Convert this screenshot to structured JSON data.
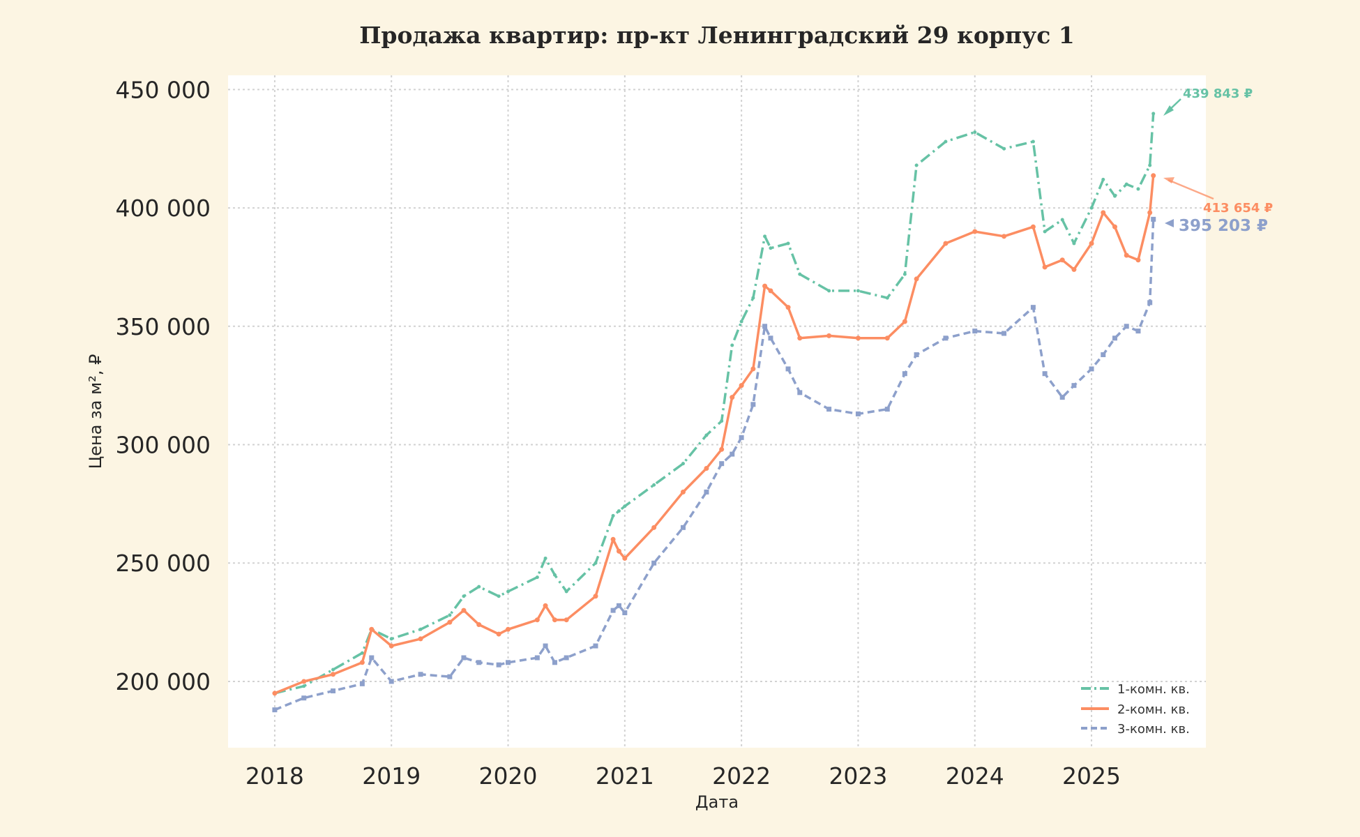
{
  "chart_data": {
    "type": "line",
    "title": "Продажа квартир: пр-кт Ленинградский 29 корпус 1",
    "xlabel": "Дата",
    "ylabel": "Цена за м², ₽",
    "xlim": [
      2017.6,
      2025.98
    ],
    "ylim": [
      172000,
      456000
    ],
    "x_ticks": [
      "2018",
      "2019",
      "2020",
      "2021",
      "2022",
      "2023",
      "2024",
      "2025"
    ],
    "y_ticks": [
      "200 000",
      "250 000",
      "300 000",
      "350 000",
      "400 000",
      "450 000"
    ],
    "grid": true,
    "legend_position": "lower-right",
    "x": [
      2018.0,
      2018.25,
      2018.5,
      2018.75,
      2018.83,
      2019.0,
      2019.25,
      2019.5,
      2019.62,
      2019.75,
      2019.92,
      2020.0,
      2020.25,
      2020.32,
      2020.4,
      2020.5,
      2020.75,
      2020.9,
      2020.95,
      2021.0,
      2021.25,
      2021.5,
      2021.7,
      2021.83,
      2021.92,
      2022.0,
      2022.1,
      2022.2,
      2022.25,
      2022.4,
      2022.5,
      2022.75,
      2023.0,
      2023.25,
      2023.4,
      2023.5,
      2023.75,
      2024.0,
      2024.25,
      2024.5,
      2024.6,
      2024.75,
      2024.85,
      2025.0,
      2025.1,
      2025.2,
      2025.3,
      2025.4,
      2025.5,
      2025.53
    ],
    "series": [
      {
        "name": "1-комн. кв.",
        "color": "#66c2a5",
        "dash": "dashdot",
        "values": [
          195000,
          198000,
          205000,
          212000,
          222000,
          218000,
          222000,
          228000,
          236000,
          240000,
          236000,
          238000,
          244000,
          252000,
          245000,
          238000,
          250000,
          270000,
          272000,
          274000,
          283000,
          292000,
          304000,
          310000,
          342000,
          352000,
          362000,
          388000,
          383000,
          385000,
          372000,
          365000,
          365000,
          362000,
          372000,
          418000,
          428000,
          432000,
          425000,
          428000,
          390000,
          395000,
          385000,
          400000,
          412000,
          405000,
          410000,
          408000,
          418000,
          439843
        ]
      },
      {
        "name": "2-комн. кв.",
        "color": "#fc8d62",
        "dash": "solid",
        "values": [
          195000,
          200000,
          203000,
          208000,
          222000,
          215000,
          218000,
          225000,
          230000,
          224000,
          220000,
          222000,
          226000,
          232000,
          226000,
          226000,
          236000,
          260000,
          255000,
          252000,
          265000,
          280000,
          290000,
          298000,
          320000,
          325000,
          332000,
          367000,
          365000,
          358000,
          345000,
          346000,
          345000,
          345000,
          352000,
          370000,
          385000,
          390000,
          388000,
          392000,
          375000,
          378000,
          374000,
          385000,
          398000,
          392000,
          380000,
          378000,
          398000,
          413654
        ]
      },
      {
        "name": "3-комн. кв.",
        "color": "#8da0cb",
        "dash": "dash",
        "values": [
          188000,
          193000,
          196000,
          199000,
          210000,
          200000,
          203000,
          202000,
          210000,
          208000,
          207000,
          208000,
          210000,
          215000,
          208000,
          210000,
          215000,
          230000,
          232000,
          229000,
          250000,
          265000,
          280000,
          292000,
          296000,
          303000,
          317000,
          350000,
          345000,
          332000,
          322000,
          315000,
          313000,
          315000,
          330000,
          338000,
          345000,
          348000,
          347000,
          358000,
          330000,
          320000,
          325000,
          332000,
          338000,
          345000,
          350000,
          348000,
          360000,
          395203
        ]
      }
    ],
    "annotations": [
      {
        "text": "439 843 ₽",
        "color": "#66c2a5"
      },
      {
        "text": "413 654 ₽",
        "color": "#fc8d62"
      },
      {
        "text": "395 203 ₽",
        "color": "#8da0cb"
      }
    ]
  }
}
